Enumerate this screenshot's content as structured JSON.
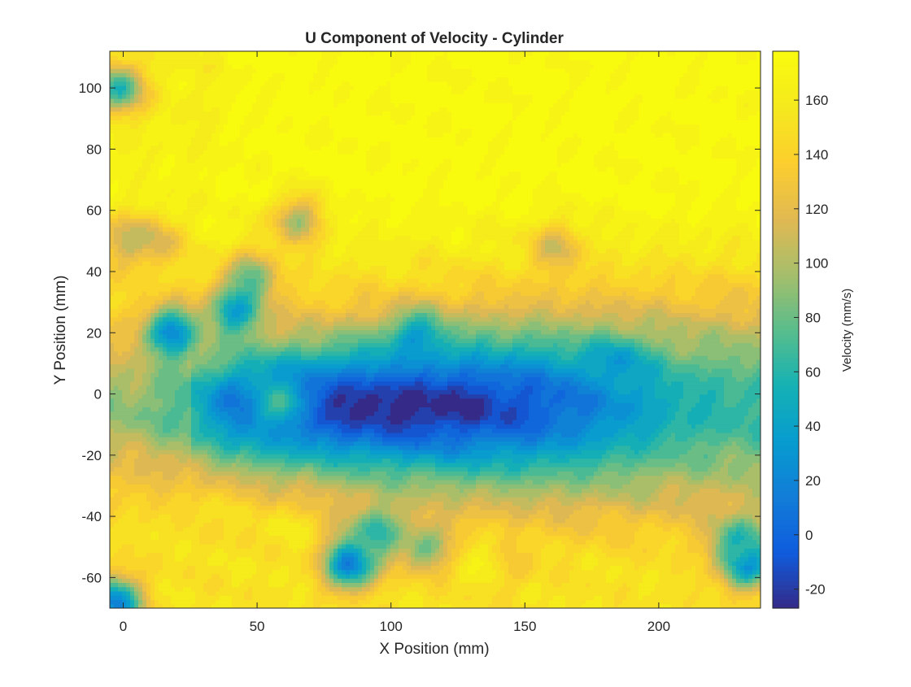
{
  "chart_data": {
    "type": "heatmap",
    "title": "U Component of Velocity - Cylinder",
    "xlabel": "X Position (mm)",
    "ylabel": "Y Position (mm)",
    "xlim": [
      -5,
      238
    ],
    "ylim": [
      -70,
      112
    ],
    "xticks": [
      0,
      50,
      100,
      150,
      200
    ],
    "yticks": [
      -60,
      -40,
      -20,
      0,
      20,
      40,
      60,
      80,
      100
    ],
    "grid": false,
    "colormap": "parula",
    "colorbar": {
      "label": "Velocity (mm/s)",
      "range": [
        -27,
        178
      ],
      "ticks": [
        -20,
        0,
        20,
        40,
        60,
        80,
        100,
        120,
        140,
        160
      ]
    },
    "field": {
      "description_units": "mm/s",
      "freestream_upper": 172,
      "freestream_lower": 140,
      "wake_center_y": -4,
      "wake_min_velocity": -24,
      "wake_min_location": [
        105,
        -5
      ],
      "wake_recovered_velocity": 65,
      "left_edge_velocity": 90
    },
    "features": [
      {
        "x": 65,
        "y": 57,
        "value": 95
      },
      {
        "x": 162,
        "y": 48,
        "value": 110
      },
      {
        "x": 48,
        "y": 38,
        "value": 80
      },
      {
        "x": 12,
        "y": 50,
        "value": 110
      },
      {
        "x": 1,
        "y": 50,
        "value": 105
      },
      {
        "x": 58,
        "y": -3,
        "value": 70
      },
      {
        "x": 185,
        "y": 9,
        "value": 35
      },
      {
        "x": 110,
        "y": 18,
        "value": 35
      },
      {
        "x": 18,
        "y": 20,
        "value": 25
      },
      {
        "x": 42,
        "y": 27,
        "value": 40
      },
      {
        "x": 85,
        "y": -55,
        "value": 10
      },
      {
        "x": 95,
        "y": -45,
        "value": 60
      },
      {
        "x": 113,
        "y": -50,
        "value": 80
      },
      {
        "x": 142,
        "y": -56,
        "value": 120
      },
      {
        "x": 233,
        "y": -55,
        "value": 25
      },
      {
        "x": 230,
        "y": -48,
        "value": 60
      },
      {
        "x": 10,
        "y": -45,
        "value": 150
      },
      {
        "x": 60,
        "y": -45,
        "value": 155
      },
      {
        "x": 135,
        "y": -55,
        "value": 158
      },
      {
        "x": -2,
        "y": 100,
        "value": 60
      },
      {
        "x": -3,
        "y": -68,
        "value": 20
      },
      {
        "x": 35,
        "y": -40,
        "value": 150
      }
    ]
  }
}
